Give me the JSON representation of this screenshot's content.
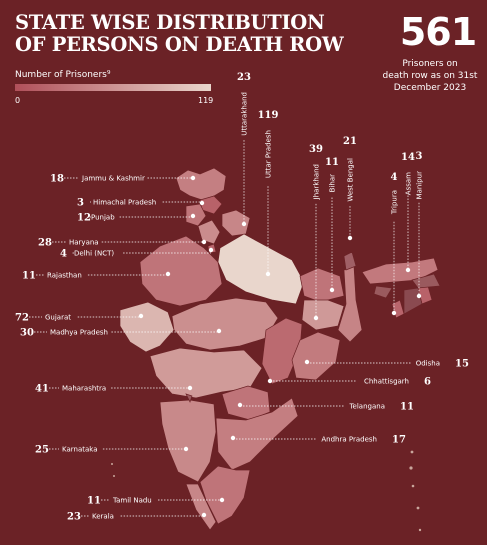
{
  "title_lines": [
    "STATE WISE DISTRIBUTION",
    "OF PERSONS ON DEATH ROW"
  ],
  "legend": {
    "title": "Number of Prisoners⁹",
    "min": "0",
    "max": "119",
    "color_low": "#b0505a",
    "color_high": "#e9d6cc"
  },
  "total": {
    "value": "561",
    "caption_lines": [
      "Prisoners on",
      "death row as on 31st",
      "December 2023"
    ]
  },
  "colors": {
    "background": "#6b2226"
  },
  "states": [
    {
      "name": "Jammu & Kashmir",
      "count": 18
    },
    {
      "name": "Himachal Pradesh",
      "count": 3
    },
    {
      "name": "Punjab",
      "count": 12
    },
    {
      "name": "Haryana",
      "count": 28
    },
    {
      "name": "Delhi (NCT)",
      "count": 4
    },
    {
      "name": "Rajasthan",
      "count": 11
    },
    {
      "name": "Gujarat",
      "count": 72
    },
    {
      "name": "Madhya Pradesh",
      "count": 30
    },
    {
      "name": "Maharashtra",
      "count": 41
    },
    {
      "name": "Karnataka",
      "count": 25
    },
    {
      "name": "Tamil Nadu",
      "count": 11
    },
    {
      "name": "Kerala",
      "count": 23
    },
    {
      "name": "Uttarakhand",
      "count": 23
    },
    {
      "name": "Uttar Pradesh",
      "count": 119
    },
    {
      "name": "Jharkhand",
      "count": 39
    },
    {
      "name": "Bihar",
      "count": 11
    },
    {
      "name": "West Bengal",
      "count": 21
    },
    {
      "name": "Tripura",
      "count": 4
    },
    {
      "name": "Assam",
      "count": 14
    },
    {
      "name": "Manipur",
      "count": 3
    },
    {
      "name": "Odisha",
      "count": 15
    },
    {
      "name": "Chhattisgarh",
      "count": 6
    },
    {
      "name": "Telangana",
      "count": 11
    },
    {
      "name": "Andhra Pradesh",
      "count": 17
    }
  ]
}
